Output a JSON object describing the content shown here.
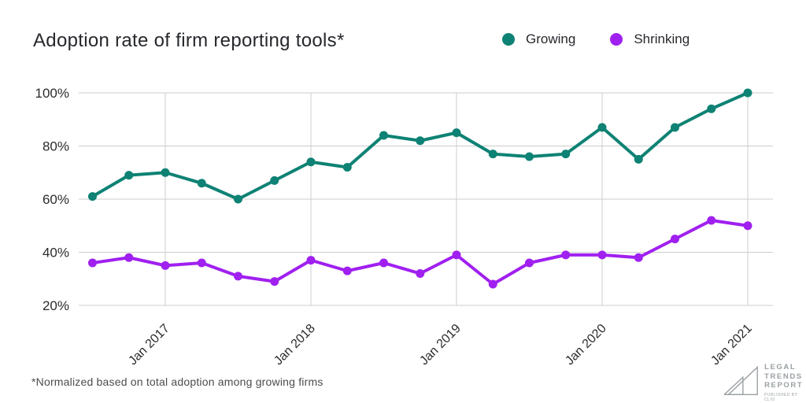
{
  "header": {
    "title": "Adoption rate of firm reporting tools*"
  },
  "legend": {
    "items": [
      {
        "label": "Growing",
        "color": "#0e8274"
      },
      {
        "label": "Shrinking",
        "color": "#a020f0"
      }
    ]
  },
  "chart_data": {
    "type": "line",
    "title": "Adoption rate of firm reporting tools*",
    "categories": [
      "Jul 2016",
      "Oct 2016",
      "Jan 2017",
      "Apr 2017",
      "Jul 2017",
      "Oct 2017",
      "Jan 2018",
      "Apr 2018",
      "Jul 2018",
      "Oct 2018",
      "Jan 2019",
      "Apr 2019",
      "Jul 2019",
      "Oct 2019",
      "Jan 2020",
      "Apr 2020",
      "Jul 2020",
      "Oct 2020",
      "Jan 2021"
    ],
    "series": [
      {
        "name": "Growing",
        "color": "#0e8274",
        "values": [
          61,
          69,
          70,
          66,
          60,
          67,
          74,
          72,
          84,
          82,
          85,
          77,
          76,
          77,
          87,
          75,
          87,
          94,
          100
        ]
      },
      {
        "name": "Shrinking",
        "color": "#a020f0",
        "values": [
          36,
          38,
          35,
          36,
          31,
          29,
          37,
          33,
          36,
          32,
          39,
          28,
          36,
          39,
          39,
          38,
          45,
          52,
          50
        ]
      }
    ],
    "ylim": [
      20,
      100
    ],
    "y_ticks": [
      100,
      80,
      60,
      40,
      20
    ],
    "y_tick_labels": [
      "100%",
      "80%",
      "60%",
      "40%",
      "20%"
    ],
    "x_tick_indices": [
      2,
      6,
      10,
      14,
      18
    ],
    "x_tick_labels": [
      "Jan 2017",
      "Jan 2018",
      "Jan 2019",
      "Jan 2020",
      "Jan 2021"
    ],
    "grid": true,
    "gridline_color": "#cccccc",
    "tick_label_color": "#2b2b2b",
    "legend_position": "top-right"
  },
  "footnote": "*Normalized based on total adoption among growing firms",
  "logo": {
    "lines": [
      "LEGAL",
      "TRENDS",
      "REPORT"
    ],
    "tagline": "PUBLISHED BY CLIO",
    "color": "#9aa0a3"
  }
}
